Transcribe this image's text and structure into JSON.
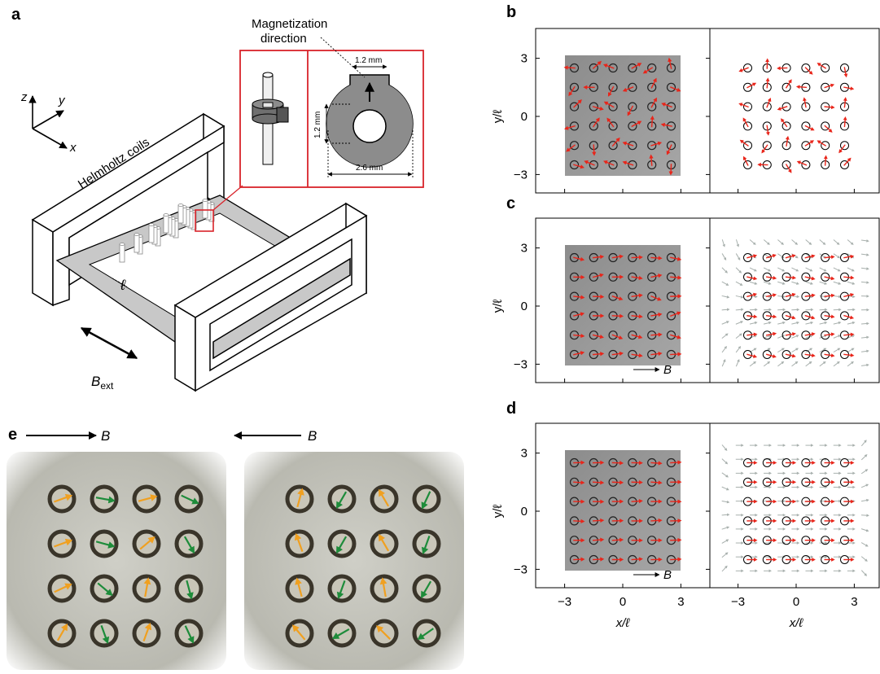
{
  "panel_a": {
    "letter": "a",
    "axis_z": "z",
    "axis_y": "y",
    "axis_x": "x",
    "coils_label": "Helmholtz coils",
    "magnetization_line1": "Magnetization",
    "magnetization_line2": "direction",
    "dim_top": "1.2 mm",
    "dim_side": "1.2 mm",
    "dim_bottom": "2.6 mm",
    "spacing_symbol": "ℓ",
    "bext_main": "B",
    "bext_sub": "ext"
  },
  "panel_b": {
    "letter": "b"
  },
  "panel_c": {
    "letter": "c",
    "field_label": "B"
  },
  "panel_d": {
    "letter": "d",
    "field_label": "B"
  },
  "panel_e": {
    "letter": "e",
    "field_left": "B",
    "field_right": "B"
  },
  "axes": {
    "y_label": "y/ℓ",
    "x_label": "x/ℓ",
    "y_ticks": [
      "3",
      "0",
      "−3"
    ],
    "x_ticks": [
      "−3",
      "0",
      "3"
    ]
  },
  "colors": {
    "arrow_red": "#e8251a",
    "arrow_orange": "#f0a020",
    "arrow_green": "#1e8c3a",
    "frame_red": "#d9232a",
    "bg_gray": "#9a9a9a"
  }
}
